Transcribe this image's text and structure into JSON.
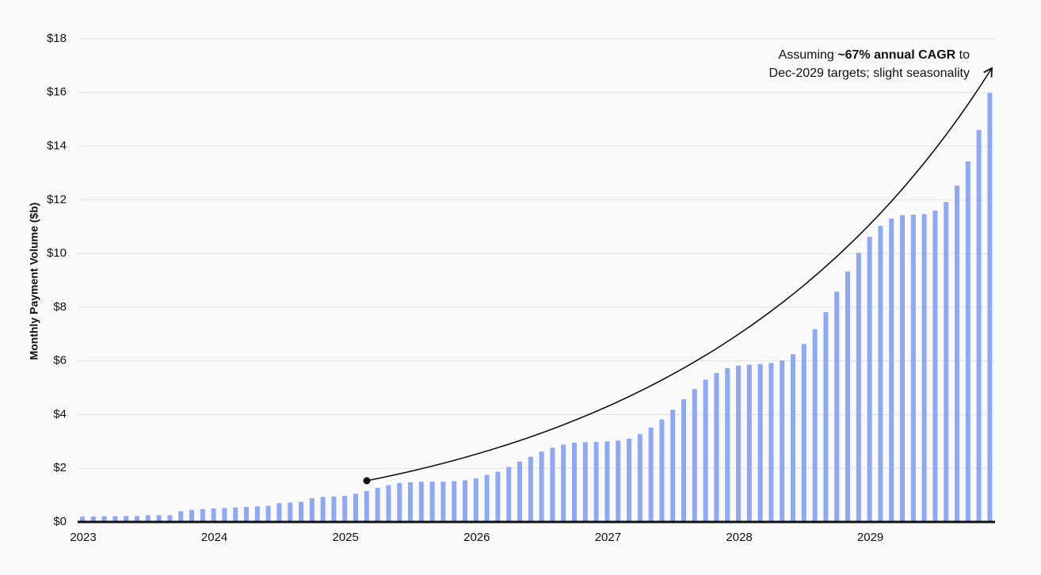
{
  "chart_data": {
    "type": "bar",
    "ylabel": "Monthly Payment Volume ($b)",
    "color": "#8fa8f5",
    "grid": true,
    "categories": [
      "2023",
      null,
      null,
      null,
      null,
      null,
      null,
      null,
      null,
      null,
      null,
      null,
      "2024",
      null,
      null,
      null,
      null,
      null,
      null,
      null,
      null,
      null,
      null,
      null,
      "2025",
      null,
      null,
      null,
      null,
      null,
      null,
      null,
      null,
      null,
      null,
      null,
      "2026",
      null,
      null,
      null,
      null,
      null,
      null,
      null,
      null,
      null,
      null,
      null,
      "2027",
      null,
      null,
      null,
      null,
      null,
      null,
      null,
      null,
      null,
      null,
      null,
      "2028",
      null,
      null,
      null,
      null,
      null,
      null,
      null,
      null,
      null,
      null,
      null,
      "2029",
      null,
      null,
      null,
      null,
      null,
      null,
      null,
      null,
      null,
      null,
      null
    ],
    "values": [
      0.2,
      0.2,
      0.21,
      0.21,
      0.22,
      0.22,
      0.25,
      0.25,
      0.25,
      0.4,
      0.45,
      0.48,
      0.5,
      0.52,
      0.54,
      0.56,
      0.58,
      0.6,
      0.7,
      0.72,
      0.75,
      0.88,
      0.93,
      0.95,
      0.97,
      1.05,
      1.15,
      1.27,
      1.37,
      1.45,
      1.48,
      1.5,
      1.5,
      1.5,
      1.52,
      1.55,
      1.62,
      1.75,
      1.87,
      2.05,
      2.25,
      2.43,
      2.62,
      2.77,
      2.88,
      2.95,
      2.97,
      2.98,
      3.0,
      3.03,
      3.1,
      3.27,
      3.52,
      3.82,
      4.18,
      4.57,
      4.95,
      5.3,
      5.55,
      5.73,
      5.82,
      5.86,
      5.88,
      5.92,
      6.02,
      6.25,
      6.63,
      7.18,
      7.82,
      8.58,
      9.33,
      10.03,
      10.62,
      11.03,
      11.3,
      11.43,
      11.45,
      11.47,
      11.6,
      11.92,
      12.53,
      13.43,
      14.6,
      15.98
    ],
    "ylim": [
      0,
      18
    ],
    "yticks": [
      {
        "value": 0,
        "label": "$0"
      },
      {
        "value": 2,
        "label": "$2"
      },
      {
        "value": 4,
        "label": "$4"
      },
      {
        "value": 6,
        "label": "$6"
      },
      {
        "value": 8,
        "label": "$8"
      },
      {
        "value": 10,
        "label": "$10"
      },
      {
        "value": 12,
        "label": "$12"
      },
      {
        "value": 14,
        "label": "$14"
      },
      {
        "value": 16,
        "label": "$16"
      },
      {
        "value": 18,
        "label": "$18"
      }
    ],
    "annotation": {
      "line1": [
        "Assuming ",
        "~67% annual CAGR",
        " to"
      ],
      "line2": "Dec-2029 targets; slight seasonality"
    }
  }
}
